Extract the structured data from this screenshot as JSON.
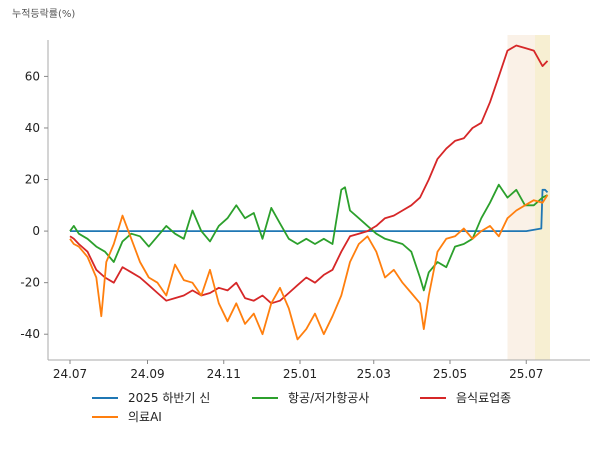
{
  "chart_data": {
    "type": "line",
    "ylabel": "누적등락률(%)",
    "ylim": [
      -50,
      78
    ],
    "yticks": [
      -40,
      -20,
      0,
      20,
      40,
      60
    ],
    "x_range": [
      "2024-07-01",
      "2025-07-20"
    ],
    "xtick_labels": [
      "24.07",
      "24.09",
      "24.11",
      "25.01",
      "25.03",
      "25.05",
      "25.07"
    ],
    "xtick_dates": [
      "2024-07-01",
      "2024-09-01",
      "2024-11-01",
      "2025-01-01",
      "2025-03-01",
      "2025-05-01",
      "2025-07-01"
    ],
    "shaded_regions": [
      {
        "start": "2025-06-16",
        "end": "2025-07-20",
        "color": "#f5e6d3",
        "opacity": 0.55
      },
      {
        "start": "2025-07-08",
        "end": "2025-07-20",
        "color": "#f5eecb",
        "opacity": 0.75
      }
    ],
    "grid": false,
    "legend_position": "bottom",
    "series": [
      {
        "name": "2025 하반기 신",
        "color": "#1f77b4",
        "points": [
          [
            "2024-07-01",
            0
          ],
          [
            "2024-09-01",
            0
          ],
          [
            "2024-11-01",
            0
          ],
          [
            "2025-01-01",
            0
          ],
          [
            "2025-03-01",
            0
          ],
          [
            "2025-05-01",
            0
          ],
          [
            "2025-07-01",
            0
          ],
          [
            "2025-07-13",
            1
          ],
          [
            "2025-07-14",
            16
          ],
          [
            "2025-07-16",
            16
          ],
          [
            "2025-07-18",
            15
          ]
        ]
      },
      {
        "name": "항공/저가항공사",
        "color": "#2ca02c",
        "points": [
          [
            "2024-07-01",
            0
          ],
          [
            "2024-07-04",
            2
          ],
          [
            "2024-07-08",
            -1
          ],
          [
            "2024-07-15",
            -3
          ],
          [
            "2024-07-22",
            -6
          ],
          [
            "2024-07-29",
            -8
          ],
          [
            "2024-08-05",
            -12
          ],
          [
            "2024-08-12",
            -4
          ],
          [
            "2024-08-19",
            -1
          ],
          [
            "2024-08-26",
            -2
          ],
          [
            "2024-09-02",
            -6
          ],
          [
            "2024-09-09",
            -2
          ],
          [
            "2024-09-16",
            2
          ],
          [
            "2024-09-23",
            -1
          ],
          [
            "2024-09-30",
            -3
          ],
          [
            "2024-10-07",
            8
          ],
          [
            "2024-10-14",
            0
          ],
          [
            "2024-10-21",
            -4
          ],
          [
            "2024-10-28",
            2
          ],
          [
            "2024-11-04",
            5
          ],
          [
            "2024-11-11",
            10
          ],
          [
            "2024-11-18",
            5
          ],
          [
            "2024-11-25",
            7
          ],
          [
            "2024-12-02",
            -3
          ],
          [
            "2024-12-09",
            9
          ],
          [
            "2024-12-16",
            3
          ],
          [
            "2024-12-23",
            -3
          ],
          [
            "2024-12-30",
            -5
          ],
          [
            "2025-01-06",
            -3
          ],
          [
            "2025-01-13",
            -5
          ],
          [
            "2025-01-20",
            -3
          ],
          [
            "2025-01-27",
            -5
          ],
          [
            "2025-02-03",
            16
          ],
          [
            "2025-02-06",
            17
          ],
          [
            "2025-02-10",
            8
          ],
          [
            "2025-02-17",
            5
          ],
          [
            "2025-02-24",
            2
          ],
          [
            "2025-03-03",
            -1
          ],
          [
            "2025-03-10",
            -3
          ],
          [
            "2025-03-17",
            -4
          ],
          [
            "2025-03-24",
            -5
          ],
          [
            "2025-03-31",
            -8
          ],
          [
            "2025-04-07",
            -18
          ],
          [
            "2025-04-10",
            -23
          ],
          [
            "2025-04-14",
            -16
          ],
          [
            "2025-04-21",
            -12
          ],
          [
            "2025-04-28",
            -14
          ],
          [
            "2025-05-05",
            -6
          ],
          [
            "2025-05-12",
            -5
          ],
          [
            "2025-05-19",
            -3
          ],
          [
            "2025-05-26",
            5
          ],
          [
            "2025-06-02",
            11
          ],
          [
            "2025-06-09",
            18
          ],
          [
            "2025-06-16",
            13
          ],
          [
            "2025-06-23",
            16
          ],
          [
            "2025-06-30",
            10
          ],
          [
            "2025-07-07",
            10
          ],
          [
            "2025-07-14",
            13
          ],
          [
            "2025-07-18",
            14
          ]
        ]
      },
      {
        "name": "음식료업종",
        "color": "#d62728",
        "points": [
          [
            "2024-07-01",
            -2
          ],
          [
            "2024-07-04",
            -3
          ],
          [
            "2024-07-08",
            -5
          ],
          [
            "2024-07-15",
            -8
          ],
          [
            "2024-07-22",
            -15
          ],
          [
            "2024-07-29",
            -18
          ],
          [
            "2024-08-05",
            -20
          ],
          [
            "2024-08-12",
            -14
          ],
          [
            "2024-08-19",
            -16
          ],
          [
            "2024-08-26",
            -18
          ],
          [
            "2024-09-02",
            -21
          ],
          [
            "2024-09-09",
            -24
          ],
          [
            "2024-09-16",
            -27
          ],
          [
            "2024-09-23",
            -26
          ],
          [
            "2024-09-30",
            -25
          ],
          [
            "2024-10-07",
            -23
          ],
          [
            "2024-10-14",
            -25
          ],
          [
            "2024-10-21",
            -24
          ],
          [
            "2024-10-28",
            -22
          ],
          [
            "2024-11-04",
            -23
          ],
          [
            "2024-11-11",
            -20
          ],
          [
            "2024-11-18",
            -26
          ],
          [
            "2024-11-25",
            -27
          ],
          [
            "2024-12-02",
            -25
          ],
          [
            "2024-12-09",
            -28
          ],
          [
            "2024-12-16",
            -27
          ],
          [
            "2024-12-23",
            -24
          ],
          [
            "2024-12-30",
            -21
          ],
          [
            "2025-01-06",
            -18
          ],
          [
            "2025-01-13",
            -20
          ],
          [
            "2025-01-20",
            -17
          ],
          [
            "2025-01-27",
            -15
          ],
          [
            "2025-02-03",
            -8
          ],
          [
            "2025-02-10",
            -2
          ],
          [
            "2025-02-17",
            -1
          ],
          [
            "2025-02-24",
            0
          ],
          [
            "2025-03-03",
            2
          ],
          [
            "2025-03-10",
            5
          ],
          [
            "2025-03-17",
            6
          ],
          [
            "2025-03-24",
            8
          ],
          [
            "2025-03-31",
            10
          ],
          [
            "2025-04-07",
            13
          ],
          [
            "2025-04-14",
            20
          ],
          [
            "2025-04-21",
            28
          ],
          [
            "2025-04-28",
            32
          ],
          [
            "2025-05-05",
            35
          ],
          [
            "2025-05-12",
            36
          ],
          [
            "2025-05-19",
            40
          ],
          [
            "2025-05-26",
            42
          ],
          [
            "2025-06-02",
            50
          ],
          [
            "2025-06-09",
            60
          ],
          [
            "2025-06-16",
            70
          ],
          [
            "2025-06-23",
            72
          ],
          [
            "2025-06-30",
            71
          ],
          [
            "2025-07-07",
            70
          ],
          [
            "2025-07-14",
            64
          ],
          [
            "2025-07-18",
            66
          ]
        ]
      },
      {
        "name": "의료AI",
        "color": "#ff7f0e",
        "points": [
          [
            "2024-07-01",
            -3
          ],
          [
            "2024-07-04",
            -5
          ],
          [
            "2024-07-08",
            -6
          ],
          [
            "2024-07-15",
            -10
          ],
          [
            "2024-07-22",
            -18
          ],
          [
            "2024-07-26",
            -33
          ],
          [
            "2024-07-30",
            -12
          ],
          [
            "2024-08-05",
            -5
          ],
          [
            "2024-08-12",
            6
          ],
          [
            "2024-08-19",
            -3
          ],
          [
            "2024-08-26",
            -12
          ],
          [
            "2024-09-02",
            -18
          ],
          [
            "2024-09-09",
            -20
          ],
          [
            "2024-09-16",
            -25
          ],
          [
            "2024-09-23",
            -13
          ],
          [
            "2024-09-30",
            -19
          ],
          [
            "2024-10-07",
            -20
          ],
          [
            "2024-10-14",
            -25
          ],
          [
            "2024-10-21",
            -15
          ],
          [
            "2024-10-28",
            -28
          ],
          [
            "2024-11-04",
            -35
          ],
          [
            "2024-11-11",
            -28
          ],
          [
            "2024-11-18",
            -36
          ],
          [
            "2024-11-25",
            -32
          ],
          [
            "2024-12-02",
            -40
          ],
          [
            "2024-12-09",
            -28
          ],
          [
            "2024-12-16",
            -22
          ],
          [
            "2024-12-23",
            -30
          ],
          [
            "2024-12-30",
            -42
          ],
          [
            "2025-01-06",
            -38
          ],
          [
            "2025-01-13",
            -32
          ],
          [
            "2025-01-20",
            -40
          ],
          [
            "2025-01-27",
            -33
          ],
          [
            "2025-02-03",
            -25
          ],
          [
            "2025-02-10",
            -12
          ],
          [
            "2025-02-17",
            -5
          ],
          [
            "2025-02-24",
            -2
          ],
          [
            "2025-03-03",
            -8
          ],
          [
            "2025-03-10",
            -18
          ],
          [
            "2025-03-17",
            -15
          ],
          [
            "2025-03-24",
            -20
          ],
          [
            "2025-03-31",
            -24
          ],
          [
            "2025-04-07",
            -28
          ],
          [
            "2025-04-10",
            -38
          ],
          [
            "2025-04-14",
            -25
          ],
          [
            "2025-04-21",
            -8
          ],
          [
            "2025-04-28",
            -3
          ],
          [
            "2025-05-05",
            -2
          ],
          [
            "2025-05-12",
            1
          ],
          [
            "2025-05-19",
            -3
          ],
          [
            "2025-05-26",
            0
          ],
          [
            "2025-06-02",
            2
          ],
          [
            "2025-06-09",
            -2
          ],
          [
            "2025-06-16",
            5
          ],
          [
            "2025-06-23",
            8
          ],
          [
            "2025-06-30",
            10
          ],
          [
            "2025-07-07",
            12
          ],
          [
            "2025-07-14",
            11
          ],
          [
            "2025-07-18",
            14
          ]
        ]
      }
    ]
  }
}
